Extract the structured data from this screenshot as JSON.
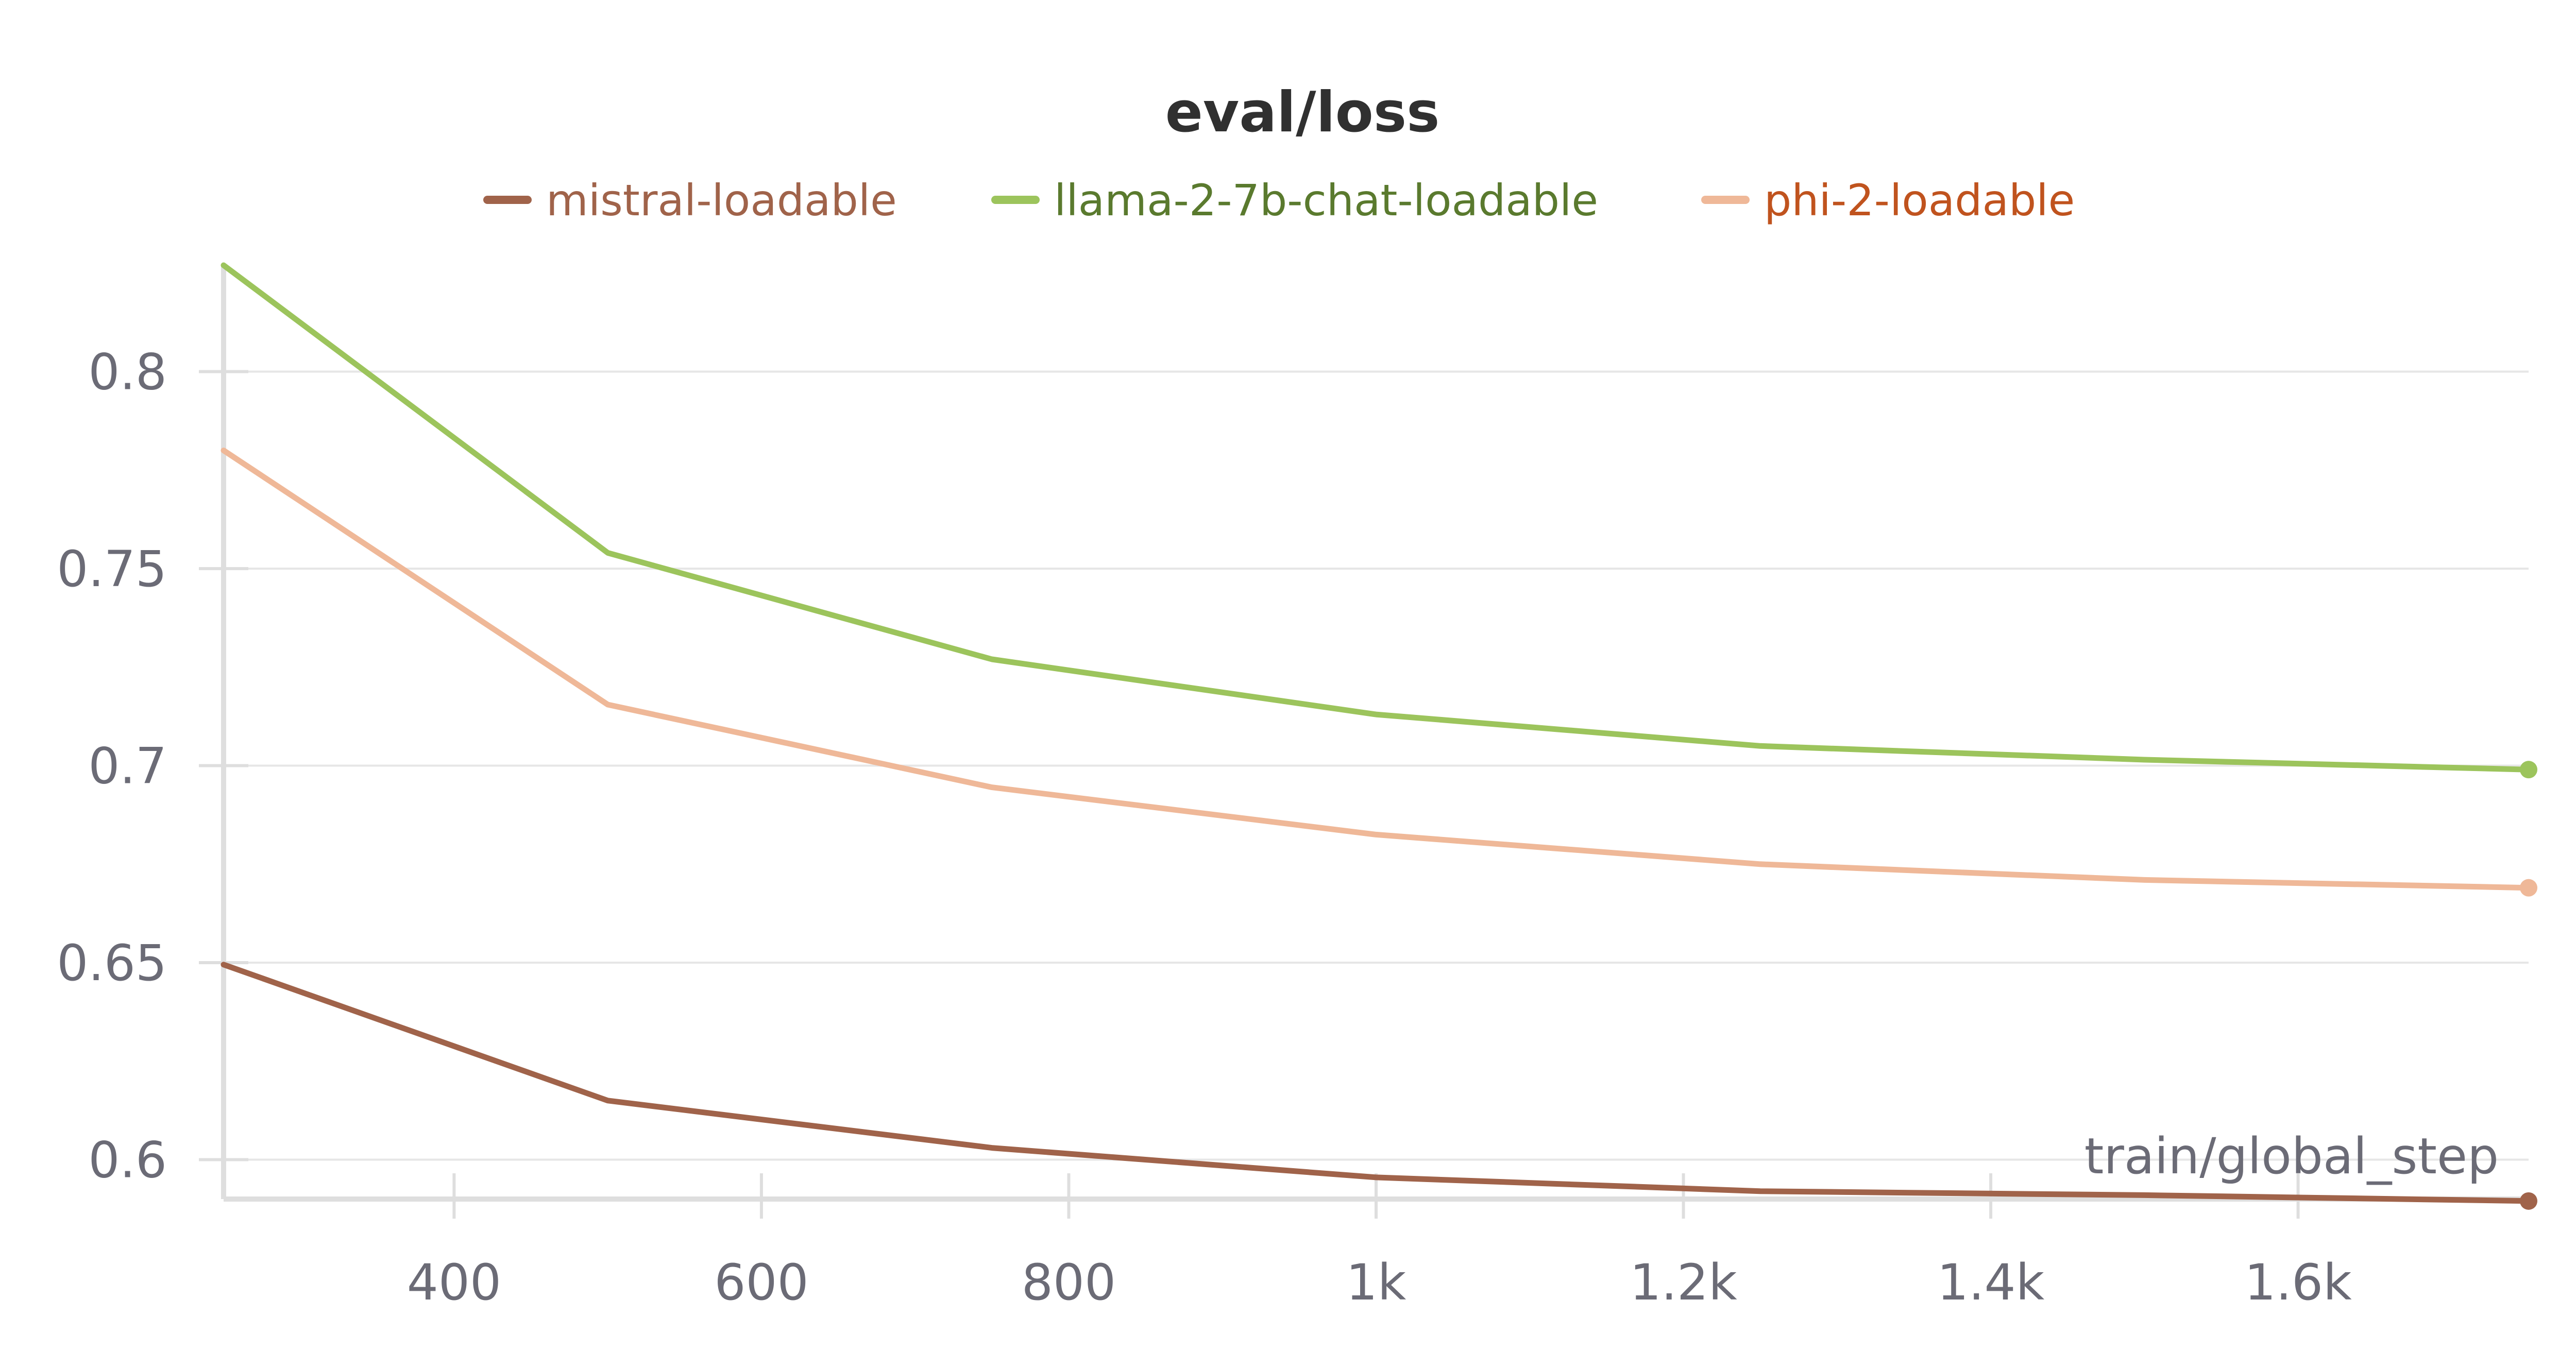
{
  "chart_data": {
    "type": "line",
    "title": "eval/loss",
    "xlabel": "train/global_step",
    "ylabel": "",
    "xlim": [
      250,
      1750
    ],
    "ylim": [
      0.59,
      0.827
    ],
    "xticks": [
      400,
      600,
      800,
      1000,
      1200,
      1400,
      1600
    ],
    "xtick_labels": [
      "400",
      "600",
      "800",
      "1k",
      "1.2k",
      "1.4k",
      "1.6k"
    ],
    "yticks": [
      0.6,
      0.65,
      0.7,
      0.75,
      0.8
    ],
    "ytick_labels": [
      "0.6",
      "0.65",
      "0.7",
      "0.75",
      "0.8"
    ],
    "grid": true,
    "legend_position": "top",
    "series": [
      {
        "name": "mistral-loadable",
        "color": "#a0634a",
        "text_color": "#a0634a",
        "x": [
          250,
          500,
          750,
          1000,
          1250,
          1500,
          1750
        ],
        "y": [
          0.6495,
          0.615,
          0.603,
          0.5955,
          0.592,
          0.591,
          0.5895
        ]
      },
      {
        "name": "llama-2-7b-chat-loadable",
        "color": "#9cc45c",
        "text_color": "#5a7a2e",
        "x": [
          250,
          500,
          750,
          1000,
          1250,
          1500,
          1750
        ],
        "y": [
          0.827,
          0.754,
          0.727,
          0.713,
          0.705,
          0.7015,
          0.699
        ]
      },
      {
        "name": "phi-2-loadable",
        "color": "#efb898",
        "text_color": "#c0531e",
        "x": [
          250,
          500,
          750,
          1000,
          1250,
          1500,
          1750
        ],
        "y": [
          0.78,
          0.7155,
          0.6945,
          0.6825,
          0.675,
          0.671,
          0.669
        ]
      }
    ]
  }
}
